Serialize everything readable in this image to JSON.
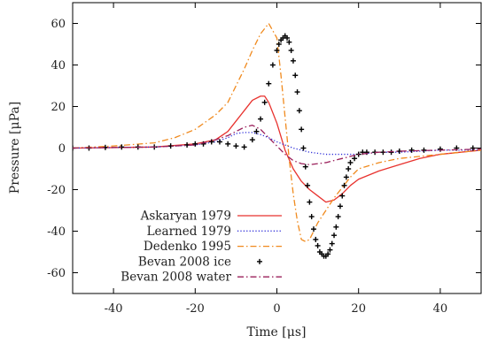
{
  "chart_data": {
    "type": "line",
    "xlabel": "Time [μs]",
    "ylabel": "Pressure [μPa]",
    "xlim": [
      -50,
      50
    ],
    "ylim": [
      -70,
      70
    ],
    "xticks": [
      -40,
      -20,
      0,
      20,
      40
    ],
    "yticks": [
      -60,
      -40,
      -20,
      0,
      20,
      40,
      60
    ],
    "xtick_labels": [
      "-40",
      "-20",
      "0",
      "20",
      "40"
    ],
    "ytick_labels": [
      "-60",
      "-40",
      "-20",
      "0",
      "20",
      "40",
      "60"
    ],
    "grid": false,
    "legend_position": "bottom-left",
    "series": [
      {
        "name": "Askaryan 1979",
        "color": "#e8322e",
        "style": "solid",
        "x": [
          -50,
          -30,
          -20,
          -15,
          -12,
          -10,
          -8,
          -6,
          -4,
          -3,
          -2,
          0,
          2,
          4,
          6,
          8,
          10,
          12,
          14,
          16,
          18,
          20,
          25,
          30,
          35,
          40,
          45,
          50
        ],
        "y": [
          0,
          0.5,
          2,
          4,
          8,
          13,
          18,
          23,
          25,
          25,
          22,
          12,
          -1,
          -10,
          -16,
          -20,
          -23,
          -26,
          -25,
          -22,
          -18,
          -15,
          -11,
          -8,
          -5,
          -3,
          -2,
          -1
        ]
      },
      {
        "name": "Learned 1979",
        "color": "#2c2cd8",
        "style": "dotted",
        "x": [
          -50,
          -30,
          -20,
          -15,
          -12,
          -10,
          -8,
          -6,
          -4,
          -2,
          0,
          2,
          4,
          6,
          8,
          10,
          12,
          15,
          20,
          25,
          30,
          40,
          50
        ],
        "y": [
          0,
          0.5,
          1.5,
          3,
          5,
          7,
          7.5,
          7.5,
          6.5,
          5,
          3,
          1.5,
          0,
          -1,
          -2,
          -2.5,
          -3,
          -3,
          -3,
          -2,
          -2,
          -1,
          -1
        ]
      },
      {
        "name": "Dedenko 1995",
        "color": "#f08a1e",
        "style": "dash-dot",
        "x": [
          -50,
          -40,
          -30,
          -25,
          -20,
          -15,
          -12,
          -10,
          -8,
          -6,
          -4,
          -2,
          0,
          1,
          2,
          3,
          4,
          5,
          6,
          7,
          8,
          9,
          10,
          12,
          14,
          16,
          18,
          20,
          25,
          30,
          40,
          50
        ],
        "y": [
          0,
          1,
          2.5,
          5,
          9,
          16,
          22,
          30,
          38,
          47,
          55,
          60,
          53,
          35,
          15,
          -5,
          -22,
          -35,
          -44,
          -45,
          -44,
          -40,
          -36,
          -30,
          -24,
          -19,
          -14,
          -10,
          -7,
          -5,
          -3,
          -1
        ]
      },
      {
        "name": "Bevan 2008 ice",
        "color": "#000000",
        "style": "points",
        "x": [
          -50,
          -46,
          -42,
          -38,
          -34,
          -30,
          -26,
          -22,
          -20,
          -18,
          -16,
          -14,
          -12,
          -10,
          -8,
          -6,
          -5,
          -4,
          -3,
          -2,
          -1,
          0,
          0.5,
          1,
          1.5,
          2,
          2.5,
          3,
          3.5,
          4,
          4.5,
          5,
          5.5,
          6,
          6.5,
          7,
          7.5,
          8,
          8.5,
          9,
          9.5,
          10,
          10.5,
          11,
          11.5,
          12,
          12.5,
          13,
          13.5,
          14,
          14.5,
          15,
          15.5,
          16,
          16.5,
          17,
          17.5,
          18,
          19,
          20,
          21,
          22,
          24,
          26,
          28,
          30,
          33,
          36,
          40,
          44,
          48
        ],
        "y": [
          0,
          0,
          0.3,
          0.5,
          0.5,
          0.5,
          1,
          1.5,
          2,
          2,
          3,
          3,
          2,
          1,
          0.5,
          4,
          8,
          14,
          22,
          31,
          40,
          47,
          50,
          52,
          53,
          54,
          53,
          51,
          47,
          42,
          35,
          27,
          18,
          9,
          0,
          -9,
          -18,
          -26,
          -33,
          -39,
          -44,
          -47,
          -50,
          -51,
          -52,
          -52,
          -51,
          -49,
          -46,
          -42,
          -38,
          -33,
          -28,
          -23,
          -18,
          -14,
          -10,
          -7,
          -5,
          -3,
          -2,
          -2,
          -2,
          -2,
          -2,
          -1.5,
          -1,
          -1,
          -0.5,
          0,
          0
        ]
      },
      {
        "name": "Bevan 2008 water",
        "color": "#9a1f5a",
        "style": "dash-dot",
        "x": [
          -50,
          -40,
          -30,
          -20,
          -15,
          -12,
          -10,
          -8,
          -6,
          -4,
          -2,
          0,
          2,
          4,
          6,
          8,
          10,
          12,
          15,
          18,
          20,
          25,
          30,
          40,
          50
        ],
        "y": [
          0,
          0.3,
          0.5,
          1.5,
          4,
          6,
          8,
          10,
          11,
          9,
          5,
          1,
          -3,
          -6,
          -7.5,
          -8,
          -7.5,
          -7,
          -5.5,
          -4,
          -3,
          -2,
          -1.5,
          -1,
          -0.5
        ]
      }
    ]
  }
}
